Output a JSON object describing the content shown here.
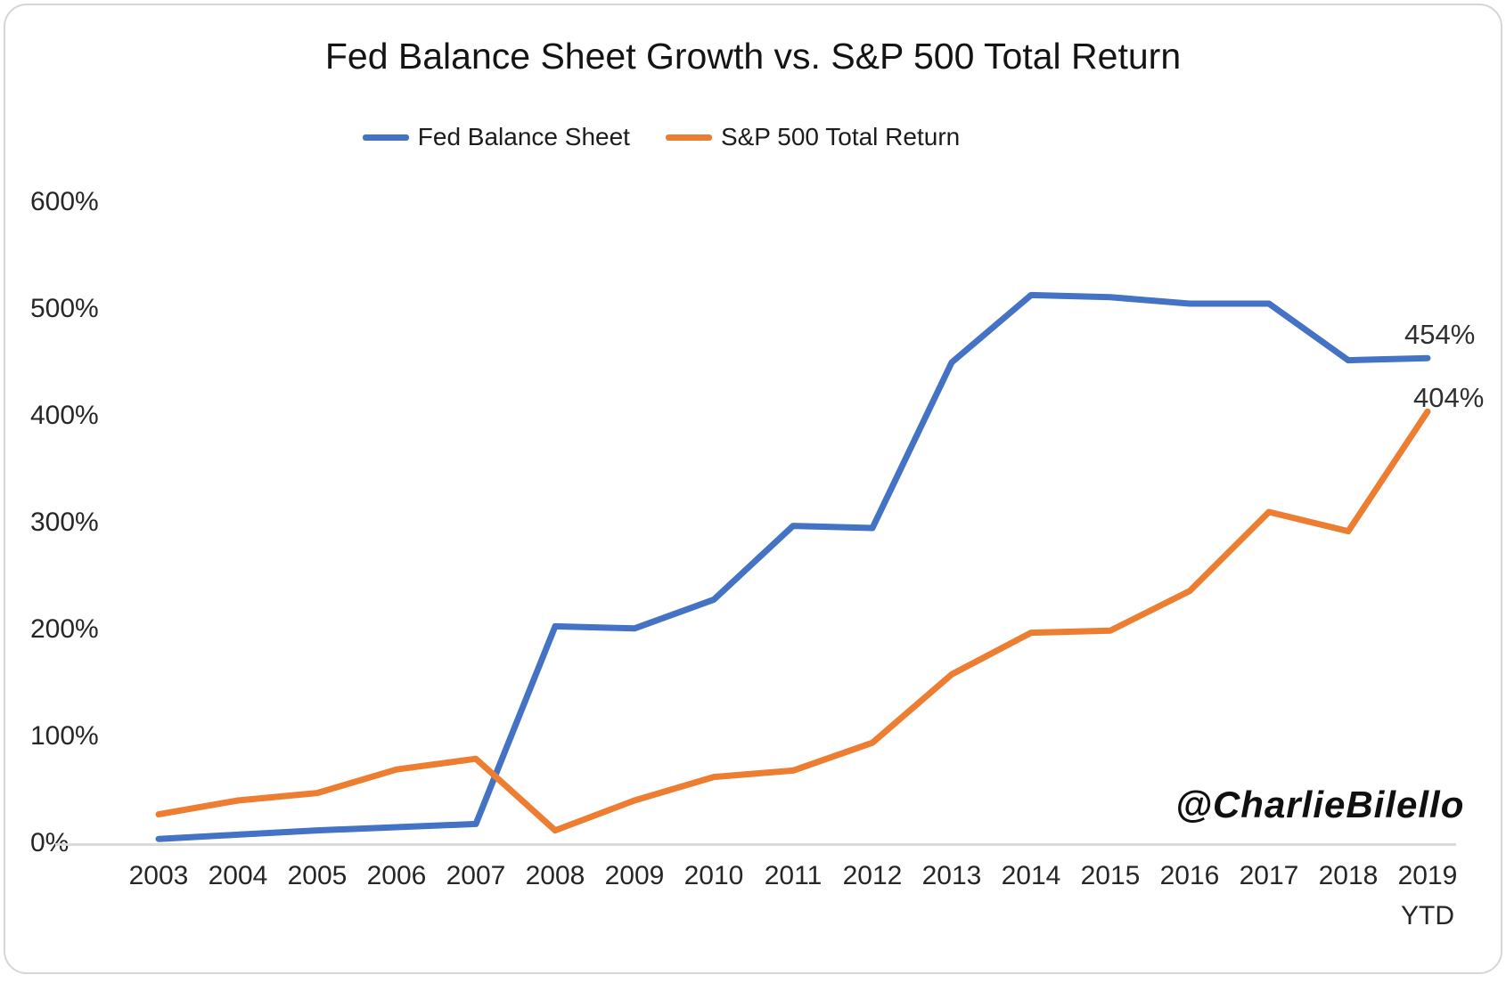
{
  "watermark": "@CharlieBilello",
  "chart_data": {
    "type": "line",
    "title": "Fed Balance Sheet Growth vs. S&P 500 Total Return",
    "xlabel": "",
    "ylabel": "",
    "ylim": [
      0,
      620
    ],
    "grid": false,
    "legend_position": "top",
    "axis_line_color": "#dadada",
    "categories": [
      "2003",
      "2004",
      "2005",
      "2006",
      "2007",
      "2008",
      "2009",
      "2010",
      "2011",
      "2012",
      "2013",
      "2014",
      "2015",
      "2016",
      "2017",
      "2018",
      "2019"
    ],
    "x_tick_subs": {
      "16": "YTD"
    },
    "y_ticks": [
      {
        "label": "600%",
        "value": 600
      },
      {
        "label": "500%",
        "value": 500
      },
      {
        "label": "400%",
        "value": 400
      },
      {
        "label": "300%",
        "value": 300
      },
      {
        "label": "200%",
        "value": 200
      },
      {
        "label": "100%",
        "value": 100
      },
      {
        "label": "0%",
        "value": 0
      }
    ],
    "series": [
      {
        "name": "Fed Balance Sheet",
        "color": "#4472C4",
        "end_label": "454%",
        "values": [
          4,
          8,
          12,
          15,
          18,
          203,
          201,
          228,
          297,
          295,
          450,
          513,
          511,
          505,
          505,
          452,
          454
        ]
      },
      {
        "name": "S&P 500 Total Return",
        "color": "#ED7D31",
        "end_label": "404%",
        "values": [
          27,
          40,
          47,
          69,
          79,
          12,
          40,
          62,
          68,
          94,
          158,
          197,
          199,
          236,
          310,
          292,
          404
        ]
      }
    ]
  }
}
